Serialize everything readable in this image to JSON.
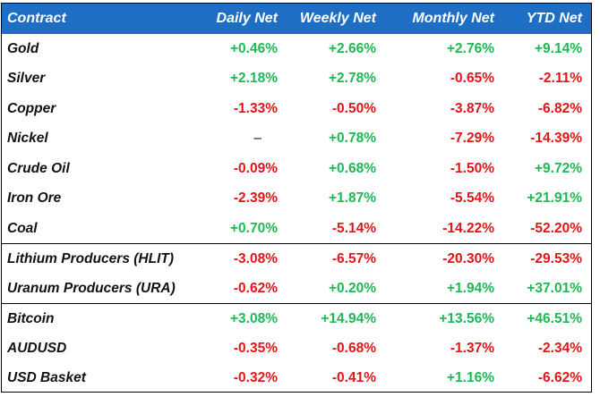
{
  "header": {
    "contract": "Contract",
    "daily": "Daily Net",
    "weekly": "Weekly Net",
    "monthly": "Monthly Net",
    "ytd": "YTD Net"
  },
  "colors": {
    "header_bg": "#1f6ec5",
    "positive": "#1db954",
    "negative": "#e0161b"
  },
  "rows": [
    {
      "name": "Gold",
      "daily": "+0.46%",
      "weekly": "+2.66%",
      "monthly": "+2.76%",
      "ytd": "+9.14%"
    },
    {
      "name": "Silver",
      "daily": "+2.18%",
      "weekly": "+2.78%",
      "monthly": "-0.65%",
      "ytd": "-2.11%"
    },
    {
      "name": "Copper",
      "daily": "-1.33%",
      "weekly": "-0.50%",
      "monthly": "-3.87%",
      "ytd": "-6.82%"
    },
    {
      "name": "Nickel",
      "daily": "–",
      "weekly": "+0.78%",
      "monthly": "-7.29%",
      "ytd": "-14.39%"
    },
    {
      "name": "Crude Oil",
      "daily": "-0.09%",
      "weekly": "+0.68%",
      "monthly": "-1.50%",
      "ytd": "+9.72%"
    },
    {
      "name": "Iron Ore",
      "daily": "-2.39%",
      "weekly": "+1.87%",
      "monthly": "-5.54%",
      "ytd": "+21.91%"
    },
    {
      "name": "Coal",
      "daily": "+0.70%",
      "weekly": "-5.14%",
      "monthly": "-14.22%",
      "ytd": "-52.20%"
    },
    {
      "name": "Lithium Producers (HLIT)",
      "daily": "-3.08%",
      "weekly": "-6.57%",
      "monthly": "-20.30%",
      "ytd": "-29.53%"
    },
    {
      "name": "Uranum Producers (URA)",
      "daily": "-0.62%",
      "weekly": "+0.20%",
      "monthly": "+1.94%",
      "ytd": "+37.01%"
    },
    {
      "name": "Bitcoin",
      "daily": "+3.08%",
      "weekly": "+14.94%",
      "monthly": "+13.56%",
      "ytd": "+46.51%"
    },
    {
      "name": "AUDUSD",
      "daily": "-0.35%",
      "weekly": "-0.68%",
      "monthly": "-1.37%",
      "ytd": "-2.34%"
    },
    {
      "name": "USD Basket",
      "daily": "-0.32%",
      "weekly": "-0.41%",
      "monthly": "+1.16%",
      "ytd": "-6.62%"
    }
  ]
}
